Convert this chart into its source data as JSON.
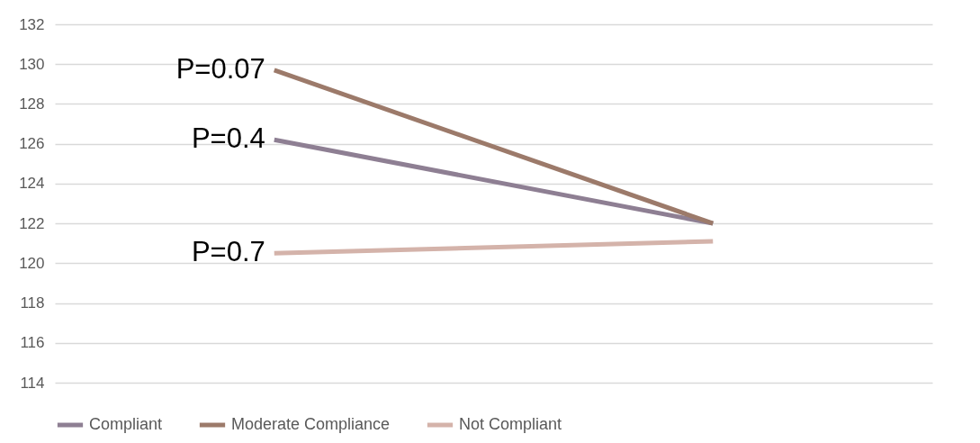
{
  "chart_data": {
    "type": "line",
    "categories": [
      null,
      null
    ],
    "ylim": [
      114,
      132
    ],
    "yticks": [
      114,
      116,
      118,
      120,
      122,
      124,
      126,
      128,
      130,
      132
    ],
    "grid": "y",
    "legend": "bottom",
    "tick_labels": "y",
    "marker": "none",
    "series": [
      {
        "name": "Compliant",
        "color": "#8e7f93",
        "values": [
          126.2,
          122.0
        ]
      },
      {
        "name": "Moderate Compliance",
        "color": "#9c7a6a",
        "values": [
          129.7,
          122.0
        ]
      },
      {
        "name": "Not Compliant",
        "color": "#d4b3aa",
        "values": [
          120.5,
          121.1
        ]
      }
    ],
    "annotations": [
      "P=0.07",
      "P=0.4",
      "P=0.7"
    ]
  }
}
